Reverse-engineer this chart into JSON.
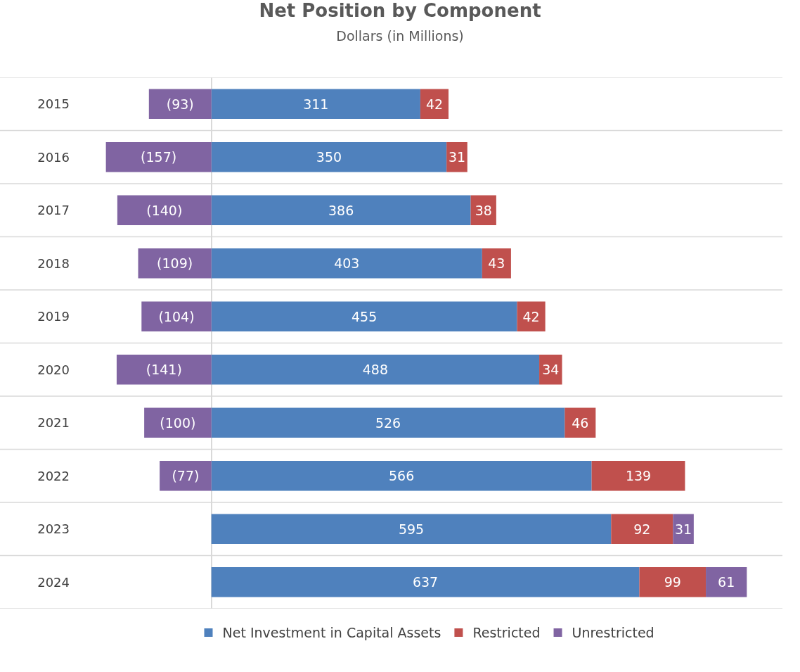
{
  "chart_data": {
    "type": "bar",
    "orientation": "horizontal",
    "stacked": true,
    "title": "Net Position by Component",
    "subtitle": "Dollars (in Millions)",
    "categories": [
      "2015",
      "2016",
      "2017",
      "2018",
      "2019",
      "2020",
      "2021",
      "2022",
      "2023",
      "2024"
    ],
    "series": [
      {
        "name": "Net Investment in Capital Assets",
        "color": "#4f81bd",
        "values": [
          311,
          350,
          386,
          403,
          455,
          488,
          526,
          566,
          595,
          637
        ],
        "value_labels": [
          "311",
          "350",
          "386",
          "403",
          "455",
          "488",
          "526",
          "566",
          "595",
          "637"
        ]
      },
      {
        "name": "Restricted",
        "color": "#c0504d",
        "values": [
          42,
          31,
          38,
          43,
          42,
          34,
          46,
          139,
          92,
          99
        ],
        "value_labels": [
          "42",
          "31",
          "38",
          "43",
          "42",
          "34",
          "46",
          "139",
          "92",
          "99"
        ]
      },
      {
        "name": "Unrestricted",
        "color": "#8064a2",
        "values": [
          -93,
          -157,
          -140,
          -109,
          -104,
          -141,
          -100,
          -77,
          31,
          61
        ],
        "value_labels": [
          "(93)",
          "(157)",
          "(140)",
          "(109)",
          "(104)",
          "(141)",
          "(100)",
          "(77)",
          "31",
          "61"
        ]
      }
    ],
    "grid": "y",
    "legend": "bottom",
    "tick_labels": "y"
  }
}
